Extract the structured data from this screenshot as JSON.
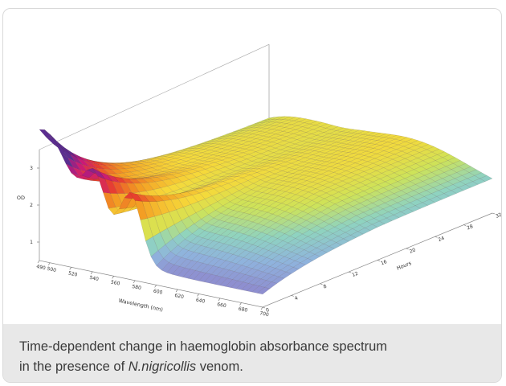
{
  "chart_data": {
    "type": "surface",
    "title": "",
    "xlabel": "Wavelength (nm)",
    "ylabel": "Hours",
    "zlabel": "OD",
    "x_ticks": [
      "490",
      "500",
      "520",
      "540",
      "560",
      "580",
      "600",
      "620",
      "640",
      "660",
      "680",
      "700"
    ],
    "y_ticks": [
      "0",
      "4",
      "8",
      "12",
      "16",
      "20",
      "24",
      "28",
      "32"
    ],
    "z_ticks": [
      "1",
      "2",
      "3"
    ],
    "xlim": [
      490,
      700
    ],
    "ylim": [
      0,
      32
    ],
    "zlim": [
      0.5,
      3.5
    ],
    "surface": {
      "description_points": [
        {
          "wavelength": 490,
          "hours": 0,
          "od": 3.3
        },
        {
          "wavelength": 540,
          "hours": 0,
          "od": 2.6
        },
        {
          "wavelength": 560,
          "hours": 0,
          "od": 2.3
        },
        {
          "wavelength": 576,
          "hours": 0,
          "od": 2.7
        },
        {
          "wavelength": 600,
          "hours": 0,
          "od": 1.0
        },
        {
          "wavelength": 700,
          "hours": 0,
          "od": 0.8
        },
        {
          "wavelength": 490,
          "hours": 32,
          "od": 1.9
        },
        {
          "wavelength": 630,
          "hours": 32,
          "od": 1.6
        },
        {
          "wavelength": 700,
          "hours": 32,
          "od": 0.9
        }
      ]
    },
    "colormap": [
      "#5b2d90",
      "#c8187a",
      "#e8402e",
      "#f39a22",
      "#f6d93a",
      "#cde35a",
      "#8fd3c0",
      "#8fb3dd",
      "#8e8fd0"
    ]
  },
  "caption": {
    "line1": "Time-dependent change in haemoglobin absorbance spectrum",
    "line2_prefix": "in the presence of ",
    "line2_species": "N.nigricollis",
    "line2_suffix": " venom."
  }
}
